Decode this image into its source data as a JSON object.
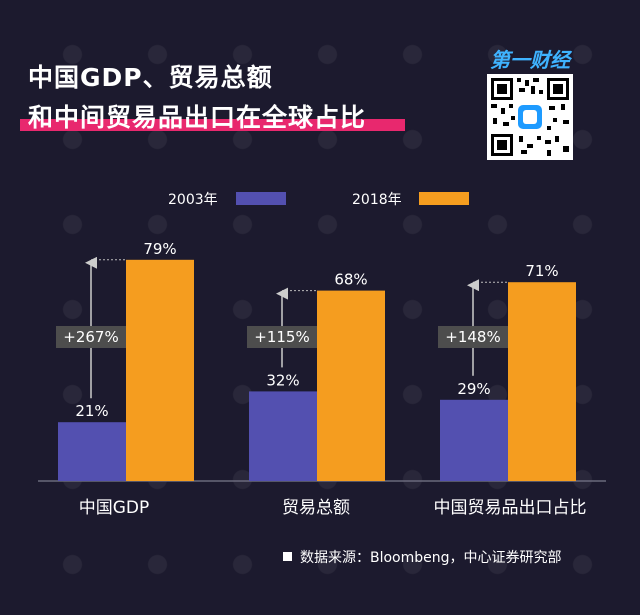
{
  "title": {
    "line1": "中国GDP、贸易总额",
    "line2": "和中间贸易品出口在全球占比"
  },
  "brand": {
    "text": "第一财经"
  },
  "colors": {
    "background": "#1c1a2e",
    "series_2003": "#5350b0",
    "series_2018": "#f59d1f",
    "accent_underline": "#e8286e",
    "annotation_box": "#4d4d4d"
  },
  "chart_data": {
    "type": "bar",
    "categories": [
      "中国GDP",
      "贸易总额",
      "中国贸易品出口占比"
    ],
    "series": [
      {
        "name": "2003年",
        "values": [
          21,
          32,
          29
        ],
        "labels": [
          "21%",
          "32%",
          "29%"
        ],
        "color": "#5350b0"
      },
      {
        "name": "2018年",
        "values": [
          79,
          68,
          71
        ],
        "labels": [
          "79%",
          "68%",
          "71%"
        ],
        "color": "#f59d1f"
      }
    ],
    "annotations": [
      "+267%",
      "+115%",
      "+148%"
    ],
    "ylim": [
      0,
      90
    ],
    "legend_position": "top",
    "grid": false
  },
  "source": "数据来源：Bloombeng，中心证券研究部"
}
